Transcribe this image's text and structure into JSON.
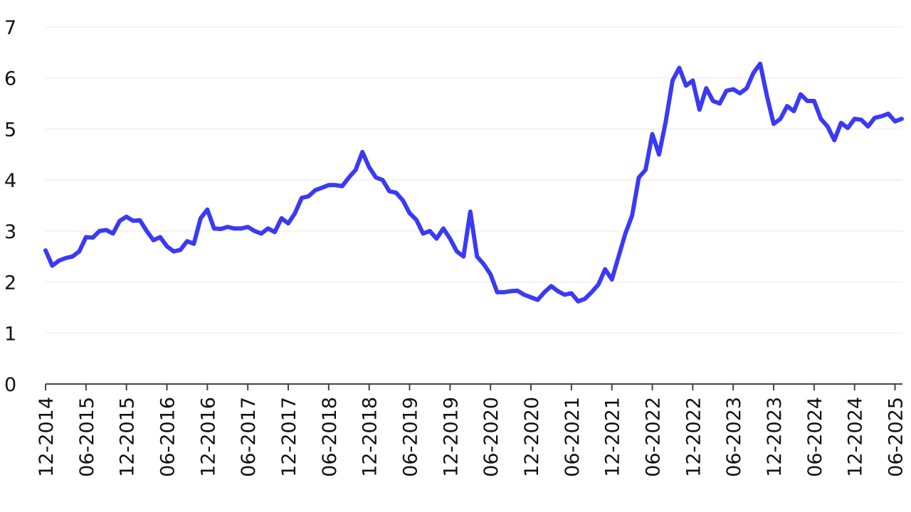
{
  "chart_data": {
    "type": "line",
    "title": "",
    "xlabel": "",
    "ylabel": "",
    "ylim": [
      0,
      7
    ],
    "yticks": [
      0,
      1,
      2,
      3,
      4,
      5,
      6,
      7
    ],
    "xticks": [
      "12-2014",
      "06-2015",
      "12-2015",
      "06-2016",
      "12-2016",
      "06-2017",
      "12-2017",
      "06-2018",
      "12-2018",
      "06-2019",
      "12-2019",
      "06-2020",
      "12-2020",
      "06-2021",
      "12-2021",
      "06-2022",
      "12-2022",
      "06-2023",
      "12-2023",
      "06-2024",
      "12-2024",
      "06-2025"
    ],
    "grid": true,
    "color": "#3a3af5",
    "series": [
      {
        "x": [
          "12-2014",
          "01-2015",
          "02-2015",
          "03-2015",
          "04-2015",
          "05-2015",
          "06-2015",
          "07-2015",
          "08-2015",
          "09-2015",
          "10-2015",
          "11-2015",
          "12-2015",
          "01-2016",
          "02-2016",
          "03-2016",
          "04-2016",
          "05-2016",
          "06-2016",
          "07-2016",
          "08-2016",
          "09-2016",
          "10-2016",
          "11-2016",
          "12-2016",
          "01-2017",
          "02-2017",
          "03-2017",
          "04-2017",
          "05-2017",
          "06-2017",
          "07-2017",
          "08-2017",
          "09-2017",
          "10-2017",
          "11-2017",
          "12-2017",
          "01-2018",
          "02-2018",
          "03-2018",
          "04-2018",
          "05-2018",
          "06-2018",
          "07-2018",
          "08-2018",
          "09-2018",
          "10-2018",
          "11-2018",
          "12-2018",
          "01-2019",
          "02-2019",
          "03-2019",
          "04-2019",
          "05-2019",
          "06-2019",
          "07-2019",
          "08-2019",
          "09-2019",
          "10-2019",
          "11-2019",
          "12-2019",
          "01-2020",
          "02-2020",
          "03-2020",
          "04-2020",
          "05-2020",
          "06-2020",
          "07-2020",
          "08-2020",
          "09-2020",
          "10-2020",
          "11-2020",
          "12-2020",
          "01-2021",
          "02-2021",
          "03-2021",
          "04-2021",
          "05-2021",
          "06-2021",
          "07-2021",
          "08-2021",
          "09-2021",
          "10-2021",
          "11-2021",
          "12-2021",
          "01-2022",
          "02-2022",
          "03-2022",
          "04-2022",
          "05-2022",
          "06-2022",
          "07-2022",
          "08-2022",
          "09-2022",
          "10-2022",
          "11-2022",
          "12-2022",
          "01-2023",
          "02-2023",
          "03-2023",
          "04-2023",
          "05-2023",
          "06-2023",
          "07-2023",
          "08-2023",
          "09-2023",
          "10-2023",
          "11-2023",
          "12-2023",
          "01-2024",
          "02-2024",
          "03-2024",
          "04-2024",
          "05-2024",
          "06-2024",
          "07-2024",
          "08-2024",
          "09-2024",
          "10-2024",
          "11-2024",
          "12-2024",
          "01-2025",
          "02-2025",
          "03-2025",
          "04-2025",
          "05-2025",
          "06-2025",
          "07-2025"
        ],
        "values": [
          2.62,
          2.32,
          2.42,
          2.47,
          2.5,
          2.6,
          2.88,
          2.87,
          3.0,
          3.02,
          2.95,
          3.2,
          3.28,
          3.2,
          3.21,
          3.0,
          2.82,
          2.88,
          2.7,
          2.6,
          2.63,
          2.8,
          2.75,
          3.25,
          3.42,
          3.05,
          3.04,
          3.08,
          3.05,
          3.05,
          3.08,
          3.0,
          2.95,
          3.05,
          2.98,
          3.25,
          3.15,
          3.35,
          3.65,
          3.68,
          3.8,
          3.85,
          3.9,
          3.9,
          3.88,
          4.05,
          4.2,
          4.55,
          4.25,
          4.05,
          4.0,
          3.78,
          3.75,
          3.6,
          3.35,
          3.22,
          2.95,
          3.0,
          2.85,
          3.05,
          2.85,
          2.6,
          2.5,
          3.38,
          2.5,
          2.35,
          2.15,
          1.8,
          1.8,
          1.82,
          1.83,
          1.75,
          1.7,
          1.65,
          1.8,
          1.92,
          1.82,
          1.75,
          1.78,
          1.62,
          1.67,
          1.8,
          1.95,
          2.25,
          2.05,
          2.5,
          2.95,
          3.3,
          4.05,
          4.2,
          4.9,
          4.5,
          5.15,
          5.95,
          6.2,
          5.85,
          5.95,
          5.38,
          5.8,
          5.55,
          5.5,
          5.75,
          5.78,
          5.7,
          5.8,
          6.1,
          6.28,
          5.65,
          5.1,
          5.2,
          5.45,
          5.35,
          5.68,
          5.55,
          5.55,
          5.2,
          5.05,
          4.78,
          5.12,
          5.02,
          5.2,
          5.18,
          5.05,
          5.22,
          5.25,
          5.3,
          5.15,
          5.2
        ]
      }
    ]
  }
}
